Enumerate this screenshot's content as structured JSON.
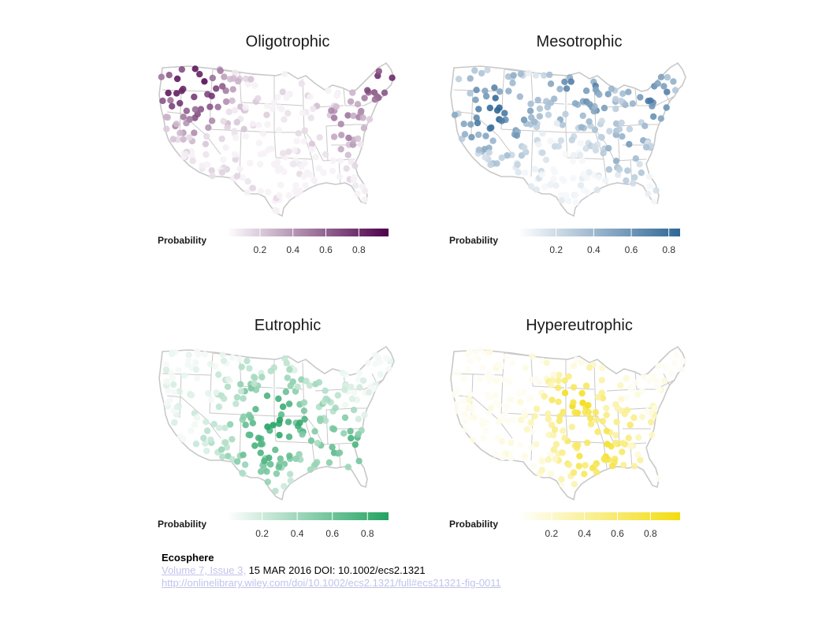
{
  "colors": {
    "oligotrophic": "#4d004b",
    "mesotrophic": "#2f6796",
    "eutrophic": "#23a363",
    "hypereutrophic": "#f3dc10",
    "outline": "#c8c8c8"
  },
  "panels": [
    {
      "id": "oligotrophic",
      "title": "Oligotrophic",
      "legend_title": "Probability",
      "ticks": [
        "0.2",
        "0.4",
        "0.6",
        "0.8"
      ],
      "tick_values": [
        0.2,
        0.4,
        0.6,
        0.8
      ],
      "range": [
        0,
        0.98
      ],
      "color": "#4d004b",
      "hotspot": "northwest-northeast",
      "seed": 11
    },
    {
      "id": "mesotrophic",
      "title": "Mesotrophic",
      "legend_title": "Probability",
      "ticks": [
        "0.2",
        "0.4",
        "0.6",
        "0.8"
      ],
      "tick_values": [
        0.2,
        0.4,
        0.6,
        0.8
      ],
      "range": [
        0,
        0.86
      ],
      "color": "#2f6796",
      "hotspot": "west-northeast",
      "seed": 23
    },
    {
      "id": "eutrophic",
      "title": "Eutrophic",
      "legend_title": "Probability",
      "ticks": [
        "0.2",
        "0.4",
        "0.6",
        "0.8"
      ],
      "tick_values": [
        0.2,
        0.4,
        0.6,
        0.8
      ],
      "range": [
        0,
        0.92
      ],
      "color": "#23a363",
      "hotspot": "central-southeast",
      "seed": 37
    },
    {
      "id": "hypereutrophic",
      "title": "Hypereutrophic",
      "legend_title": "Probability",
      "ticks": [
        "0.2",
        "0.4",
        "0.6",
        "0.8"
      ],
      "tick_values": [
        0.2,
        0.4,
        0.6,
        0.8
      ],
      "range": [
        0,
        0.98
      ],
      "color": "#f3dc10",
      "hotspot": "midwest-south",
      "seed": 51
    }
  ],
  "citation": {
    "journal": "Ecosphere",
    "issue_link": "Volume 7, Issue 3,",
    "date_doi": " 15 MAR 2016 DOI: 10.1002/ecs2.1321",
    "url": "http://onlinelibrary.wiley.com/doi/10.1002/ecs2.1321/full#ecs21321-fig-0011"
  }
}
